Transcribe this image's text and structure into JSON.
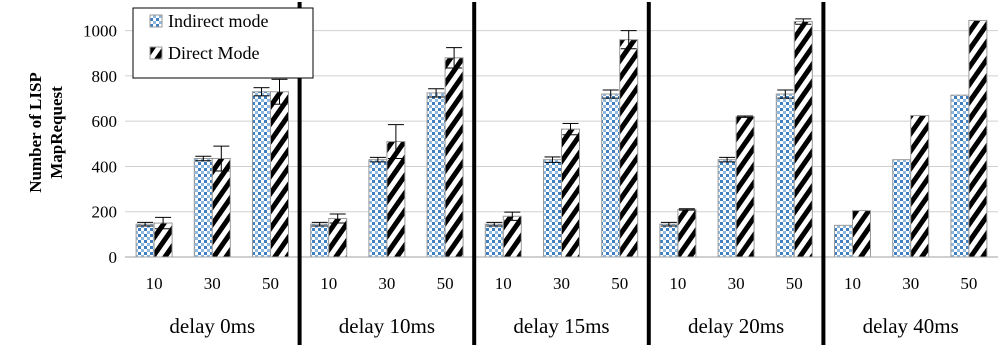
{
  "chart_data": {
    "type": "bar",
    "ylabel": "Number of LISP MapRequest",
    "ylabel_lines": [
      "Number of LISP",
      "MapRequest"
    ],
    "ylim": [
      0,
      1100
    ],
    "yticks": [
      0,
      200,
      400,
      600,
      800,
      1000
    ],
    "grid": "horizontal",
    "legend_position": "top-left",
    "groups": [
      {
        "label": "delay 0ms",
        "categories": [
          "10",
          "30",
          "50"
        ]
      },
      {
        "label": "delay 10ms",
        "categories": [
          "10",
          "30",
          "50"
        ]
      },
      {
        "label": "delay 15ms",
        "categories": [
          "10",
          "30",
          "50"
        ]
      },
      {
        "label": "delay 20ms",
        "categories": [
          "10",
          "30",
          "50"
        ]
      },
      {
        "label": "delay 40ms",
        "categories": [
          "10",
          "30",
          "50"
        ]
      }
    ],
    "series": [
      {
        "name": "Indirect mode",
        "pattern": "dots",
        "color": "#4a86c0",
        "values": [
          [
            145,
            435,
            730
          ],
          [
            145,
            430,
            725
          ],
          [
            145,
            430,
            720
          ],
          [
            145,
            430,
            720
          ],
          [
            140,
            430,
            715
          ]
        ],
        "errors": [
          [
            8,
            10,
            18
          ],
          [
            8,
            10,
            18
          ],
          [
            8,
            12,
            18
          ],
          [
            8,
            10,
            18
          ],
          [
            0,
            0,
            0
          ]
        ]
      },
      {
        "name": "Direct Mode",
        "pattern": "stripes",
        "color": "#000000",
        "values": [
          [
            150,
            435,
            730
          ],
          [
            170,
            510,
            880
          ],
          [
            180,
            565,
            960
          ],
          [
            210,
            620,
            1040
          ],
          [
            205,
            625,
            1045
          ]
        ],
        "errors": [
          [
            25,
            55,
            55
          ],
          [
            20,
            75,
            45
          ],
          [
            18,
            25,
            40
          ],
          [
            3,
            3,
            12
          ],
          [
            0,
            0,
            0
          ]
        ]
      }
    ]
  }
}
